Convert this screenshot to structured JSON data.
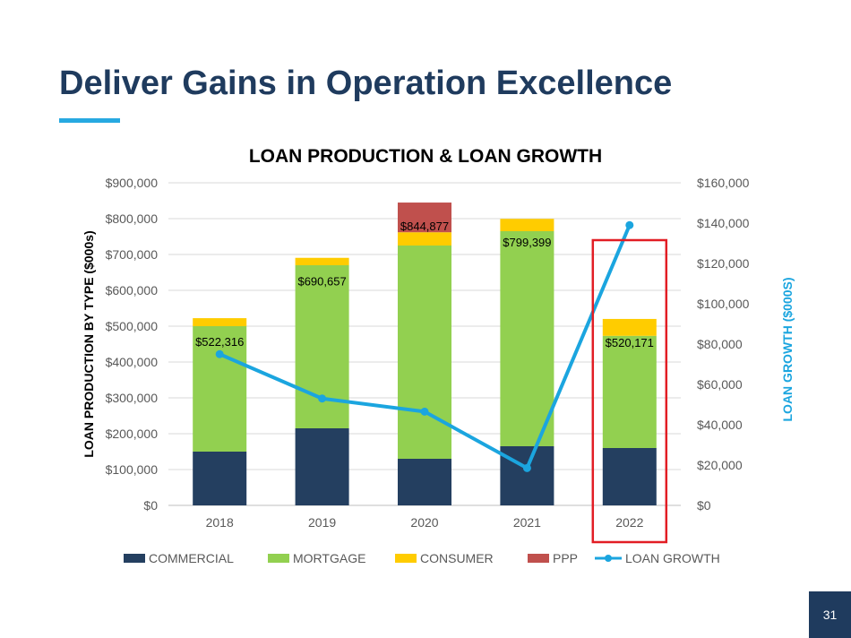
{
  "slide": {
    "title": "Deliver Gains in Operation Excellence",
    "page_number": "31"
  },
  "colors": {
    "title": "#1f3b5e",
    "accent_rule": "#27a9e1",
    "commercial": "#243f60",
    "mortgage": "#92d050",
    "consumer": "#ffcc00",
    "ppp": "#c0504d",
    "loan_growth": "#1ba5df",
    "highlight_box": "#e21d24",
    "page_badge": "#1f3b5e"
  },
  "chart_data": {
    "type": "bar",
    "stacked": true,
    "title": "LOAN PRODUCTION & LOAN GROWTH",
    "ylabel": "LOAN PRODUCTION BY TYPE ($000s)",
    "y2label": "LOAN GROWTH ($000S)",
    "categories": [
      "2018",
      "2019",
      "2020",
      "2021",
      "2022"
    ],
    "ylim": [
      0,
      900000
    ],
    "y2lim": [
      0,
      160000
    ],
    "yticks": [
      "$0",
      "$100,000",
      "$200,000",
      "$300,000",
      "$400,000",
      "$500,000",
      "$600,000",
      "$700,000",
      "$800,000",
      "$900,000"
    ],
    "y2ticks": [
      "$0",
      "$20,000",
      "$40,000",
      "$60,000",
      "$80,000",
      "$100,000",
      "$120,000",
      "$140,000",
      "$160,000"
    ],
    "series": [
      {
        "name": "COMMERCIAL",
        "type": "bar",
        "values": [
          150000,
          215000,
          130000,
          165000,
          160000
        ]
      },
      {
        "name": "MORTGAGE",
        "type": "bar",
        "values": [
          350000,
          455000,
          595000,
          600000,
          313000
        ]
      },
      {
        "name": "CONSUMER",
        "type": "bar",
        "values": [
          22316,
          20657,
          37000,
          34399,
          47171
        ]
      },
      {
        "name": "PPP",
        "type": "bar",
        "values": [
          0,
          0,
          82877,
          0,
          0
        ]
      },
      {
        "name": "LOAN GROWTH",
        "type": "line",
        "axis": "right",
        "values": [
          75000,
          53000,
          46500,
          18500,
          139000
        ]
      }
    ],
    "total_labels": [
      "$522,316",
      "$690,657",
      "$844,877",
      "$799,399",
      "$520,171"
    ],
    "legend_position": "bottom",
    "grid": true,
    "highlighted_category": "2022"
  }
}
